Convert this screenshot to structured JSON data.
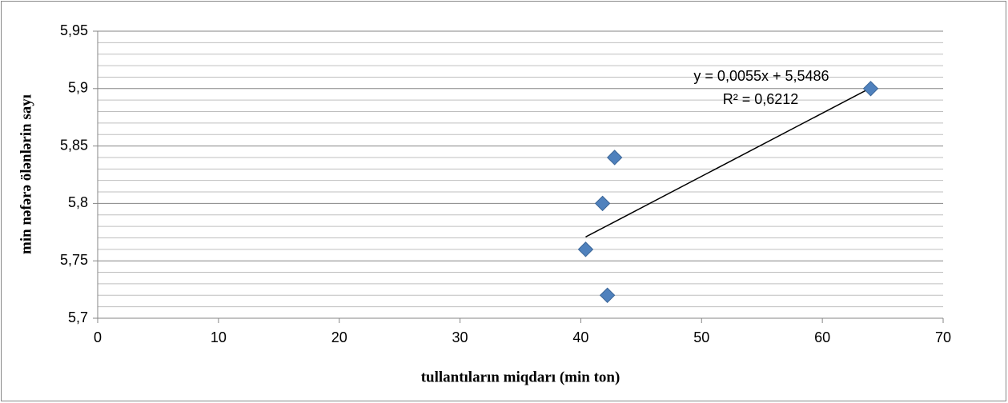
{
  "chart_data": {
    "type": "scatter",
    "x_label": "tullantıların miqdarı (min ton)",
    "y_label": "min nəfərə ölənlərin sayı",
    "x": [
      64,
      42.8,
      41.8,
      40.4,
      42.2
    ],
    "values": [
      5.9,
      5.84,
      5.8,
      5.76,
      5.72
    ],
    "color": "#4f81bd",
    "xlim": [
      0,
      70
    ],
    "xticks": [
      0,
      10,
      20,
      30,
      40,
      50,
      60,
      70
    ],
    "ylim": [
      5.7,
      5.95
    ],
    "yticks": [
      {
        "value": 5.7,
        "label": "5,7"
      },
      {
        "value": 5.75,
        "label": "5,75"
      },
      {
        "value": 5.8,
        "label": "5,8"
      },
      {
        "value": 5.85,
        "label": "5,85"
      },
      {
        "value": 5.9,
        "label": "5,9"
      },
      {
        "value": 5.95,
        "label": "5,95"
      }
    ],
    "grid": true,
    "minor_grid": true,
    "trendline": {
      "slope": 0.0055,
      "intercept": 5.5486,
      "equation": "y = 0,0055x + 5,5486",
      "r2": "R² = 0,6212"
    }
  }
}
